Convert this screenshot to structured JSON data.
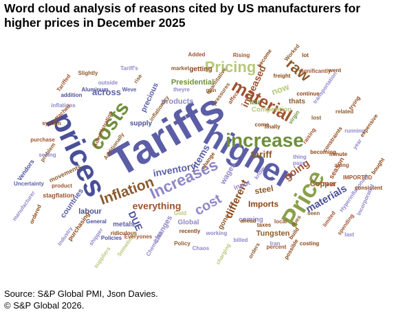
{
  "title": {
    "line1": "Word cloud analysis of reasons cited by US manufacturers for",
    "line2": "higher prices in December 2025"
  },
  "footer": {
    "source": "Source: S&P Global PMI, Json Davies.",
    "copyright": "© S&P Global 2026."
  },
  "chart_data": {
    "type": "wordcloud",
    "words": [
      {
        "text": "Tariffs",
        "color": "#5b5ea6"
      },
      {
        "text": "higher",
        "color": "#5b5ea6"
      },
      {
        "text": "prices",
        "color": "#4a4f99"
      },
      {
        "text": "increase",
        "color": "#6e8f3a"
      },
      {
        "text": "Price",
        "color": "#8aa04a"
      },
      {
        "text": "costs",
        "color": "#6e8f3a"
      },
      {
        "text": "material",
        "color": "#a0522d"
      },
      {
        "text": "Pricing",
        "color": "#b7c77a"
      },
      {
        "text": "raw",
        "color": "#8b5a2b"
      },
      {
        "text": "Increases",
        "color": "#8f86c8"
      },
      {
        "text": "Inflation",
        "color": "#8b5a2b"
      },
      {
        "text": "tariff",
        "color": "#8b5a2b"
      },
      {
        "text": "cost",
        "color": "#8f86c8"
      },
      {
        "text": "materials",
        "color": "#4a4f99"
      },
      {
        "text": "inventory",
        "color": "#5b5ea6"
      },
      {
        "text": "everything",
        "color": "#a0522d"
      },
      {
        "text": "different",
        "color": "#8b4513"
      },
      {
        "text": "going",
        "color": "#a0522d"
      },
      {
        "text": "Imports",
        "color": "#8b4513"
      },
      {
        "text": "DUE",
        "color": "#4a4f99"
      },
      {
        "text": "steel",
        "color": "#8b5a2b"
      },
      {
        "text": "items",
        "color": "#5b5ea6"
      },
      {
        "text": "Copper",
        "color": "#a0522d"
      },
      {
        "text": "increased",
        "color": "#a0522d"
      },
      {
        "text": "now",
        "color": "#b7c77a"
      },
      {
        "text": "wages",
        "color": "#8f86c8"
      },
      {
        "text": "across",
        "color": "#5b5ea6"
      },
      {
        "text": "Presidential",
        "color": "#6e8f3a"
      },
      {
        "text": "precious",
        "color": "#5b5ea6"
      },
      {
        "text": "products",
        "color": "#8f86c8"
      },
      {
        "text": "supply",
        "color": "#4a4f99"
      },
      {
        "text": "changes",
        "color": "#8f86c8"
      },
      {
        "text": "labour",
        "color": "#4a4f99"
      },
      {
        "text": "countries",
        "color": "#5b5ea6"
      },
      {
        "text": "metals",
        "color": "#5b5ea6"
      },
      {
        "text": "Global",
        "color": "#8f86c8"
      },
      {
        "text": "Tungsten",
        "color": "#8b5a2b"
      },
      {
        "text": "coming",
        "color": "#8f86c8"
      },
      {
        "text": "season",
        "color": "#a0522d"
      },
      {
        "text": "input",
        "color": "#8f86c8"
      },
      {
        "text": "gone",
        "color": "#8b5a2b"
      },
      {
        "text": "getting",
        "color": "#8b4513"
      },
      {
        "text": "Competition",
        "color": "#b7c77a"
      },
      {
        "text": "thats",
        "color": "#8b5a2b"
      },
      {
        "text": "Hyperinflationary",
        "color": "#8f86c8"
      },
      {
        "text": "IMPORTED",
        "color": "#a0522d"
      },
      {
        "text": "consistent",
        "color": "#8b4513"
      },
      {
        "text": "Incorporated",
        "color": "#8f86c8"
      },
      {
        "text": "bought",
        "color": "#8b4513"
      },
      {
        "text": "Uncertainty",
        "color": "#5b5ea6"
      },
      {
        "text": "Vendors",
        "color": "#4a4f99"
      },
      {
        "text": "stagflation",
        "color": "#a0522d"
      },
      {
        "text": "manufacturer",
        "color": "#8f86c8"
      },
      {
        "text": "movements",
        "color": "#8b5a2b"
      },
      {
        "text": "product",
        "color": "#a0522d"
      },
      {
        "text": "ordered",
        "color": "#8b4513"
      },
      {
        "text": "purchasing",
        "color": "#8b4513"
      },
      {
        "text": "Industry",
        "color": "#8f86c8"
      },
      {
        "text": "shipper",
        "color": "#8f86c8"
      },
      {
        "text": "Policies",
        "color": "#4a4f99"
      },
      {
        "text": "ridiculous",
        "color": "#8b4513"
      },
      {
        "text": "General",
        "color": "#4a4f99"
      },
      {
        "text": "Chemicals",
        "color": "#8f86c8"
      },
      {
        "text": "Chaos",
        "color": "#8f86c8"
      },
      {
        "text": "Policy",
        "color": "#8b5a2b"
      },
      {
        "text": "billed",
        "color": "#8f86c8"
      },
      {
        "text": "taxes",
        "color": "#8b4513"
      },
      {
        "text": "percent",
        "color": "#a0522d"
      },
      {
        "text": "possible",
        "color": "#8b4513"
      },
      {
        "text": "recently",
        "color": "#8b4513"
      },
      {
        "text": "working",
        "color": "#8f86c8"
      },
      {
        "text": "charging",
        "color": "#b7c77a"
      },
      {
        "text": "orders",
        "color": "#8b5a2b"
      },
      {
        "text": "ahead",
        "color": "#8b5a2b"
      },
      {
        "text": "Gold",
        "color": "#b7c77a"
      },
      {
        "text": "inflationary",
        "color": "#8b5a2b"
      },
      {
        "text": "inflations",
        "color": "#8f86c8"
      },
      {
        "text": "Aluminum",
        "color": "#4a4f99"
      },
      {
        "text": "Administration",
        "color": "#a0522d"
      },
      {
        "text": "addition",
        "color": "#4a4f99"
      },
      {
        "text": "system",
        "color": "#8b4513"
      },
      {
        "text": "purchase",
        "color": "#a0522d"
      },
      {
        "text": "problem",
        "color": "#8b5a2b"
      },
      {
        "text": "attached",
        "color": "#a0522d"
      },
      {
        "text": "Slightly",
        "color": "#8b5a2b"
      },
      {
        "text": "outside",
        "color": "#8f86c8"
      },
      {
        "text": "Tariffed",
        "color": "#a0522d"
      },
      {
        "text": "Tariff's",
        "color": "#8f86c8"
      },
      {
        "text": "Weve",
        "color": "#5b5ea6"
      },
      {
        "text": "rise",
        "color": "#8b5a2b"
      },
      {
        "text": "market",
        "color": "#8b5a2b"
      },
      {
        "text": "theyre",
        "color": "#8f86c8"
      },
      {
        "text": "Added",
        "color": "#a0522d"
      },
      {
        "text": "Rising",
        "color": "#a0522d"
      },
      {
        "text": "become",
        "color": "#8b4513"
      },
      {
        "text": "Worked",
        "color": "#8b5a2b"
      },
      {
        "text": "significantly",
        "color": "#a0522d"
      },
      {
        "text": "went",
        "color": "#8b4513"
      },
      {
        "text": "transportation",
        "color": "#8f86c8"
      },
      {
        "text": "trying",
        "color": "#8b4513"
      },
      {
        "text": "running",
        "color": "#8f86c8"
      },
      {
        "text": "expensive",
        "color": "#8b4513"
      },
      {
        "text": "Mill",
        "color": "#6e8f3a"
      },
      {
        "text": "affect",
        "color": "#a0522d"
      },
      {
        "text": "pressures",
        "color": "#8b5a2b"
      },
      {
        "text": "quantitative",
        "color": "#8b5a2b"
      },
      {
        "text": "becoming",
        "color": "#8b4513"
      },
      {
        "text": "along",
        "color": "#a0522d"
      },
      {
        "text": "minute",
        "color": "#8b4513"
      },
      {
        "text": "year",
        "color": "#8f86c8"
      },
      {
        "text": "field",
        "color": "#a0522d"
      },
      {
        "text": "seen",
        "color": "#8b5a2b"
      },
      {
        "text": "costing",
        "color": "#8b4513"
      },
      {
        "text": "last",
        "color": "#8f86c8"
      },
      {
        "text": "build",
        "color": "#8b4513"
      },
      {
        "text": "thing",
        "color": "#8f86c8"
      },
      {
        "text": "lost",
        "color": "#8b5a2b"
      },
      {
        "text": "know",
        "color": "#8f86c8"
      },
      {
        "text": "change",
        "color": "#8b4513"
      },
      {
        "text": "come",
        "color": "#8b4513"
      },
      {
        "text": "seeing",
        "color": "#8f86c8"
      },
      {
        "text": "Additionally",
        "color": "#8b5a2b"
      },
      {
        "text": "Sometimes",
        "color": "#b7c77a"
      },
      {
        "text": "Everyones",
        "color": "#a0522d"
      },
      {
        "text": "suppliers",
        "color": "#b7c77a"
      },
      {
        "text": "constraints",
        "color": "#8b4513"
      },
      {
        "text": "pass",
        "color": "#8f86c8"
      },
      {
        "text": "raising",
        "color": "#a0522d"
      },
      {
        "text": "finally",
        "color": "#8b4513"
      },
      {
        "text": "gun",
        "color": "#8b5a2b"
      },
      {
        "text": "virgin",
        "color": "#6e8f3a"
      },
      {
        "text": "continue",
        "color": "#8b4513"
      },
      {
        "text": "related",
        "color": "#8b5a2b"
      },
      {
        "text": "lot",
        "color": "#8b4513"
      },
      {
        "text": "limited",
        "color": "#a0522d"
      },
      {
        "text": "spending",
        "color": "#a0522d"
      },
      {
        "text": "dues",
        "color": "#8b5a2b"
      },
      {
        "text": "freight",
        "color": "#8b4513"
      },
      {
        "text": "Iran",
        "color": "#8f86c8"
      },
      {
        "text": "local",
        "color": "#a0522d"
      }
    ]
  }
}
